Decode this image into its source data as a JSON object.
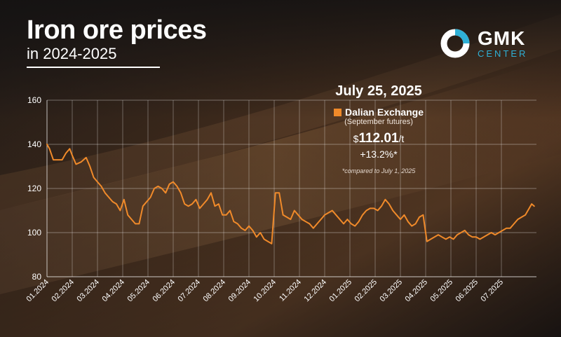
{
  "header": {
    "title": "Iron ore prices",
    "subtitle": "in 2024-2025"
  },
  "logo": {
    "name": "GMK",
    "tagline": "CENTER",
    "icon": "gmk-ring-logo"
  },
  "callout": {
    "date": "July 25, 2025",
    "exchange": "Dalian Exchange",
    "contract": "(September futures)",
    "currency": "$",
    "price": "112.01",
    "unit": "/t",
    "change": "+13.2%*",
    "footnote": "*compared to July 1, 2025"
  },
  "colors": {
    "line": "#f08a2a",
    "accent": "#2fb0d6"
  },
  "chart_data": {
    "type": "line",
    "ylim": [
      80,
      160
    ],
    "yticks": [
      80,
      100,
      120,
      140,
      160
    ],
    "xlim": [
      0,
      19.3
    ],
    "categories": [
      "01.2024",
      "02.2024",
      "03.2024",
      "04.2024",
      "05.2024",
      "06.2024",
      "07.2024",
      "08.2024",
      "09.2024",
      "10.2024",
      "11.2024",
      "12.2024",
      "01.2025",
      "02.2025",
      "03.2025",
      "04.2025",
      "05.2025",
      "06.2025",
      "07.2025"
    ],
    "grid": true,
    "series": [
      {
        "x": [
          0.0,
          0.1,
          0.25,
          0.45,
          0.6,
          0.75,
          0.9,
          1.0,
          1.15,
          1.35,
          1.55,
          1.7,
          1.85,
          2.0,
          2.15,
          2.3,
          2.45,
          2.6,
          2.75,
          2.9,
          3.05,
          3.2,
          3.35,
          3.5,
          3.65,
          3.8,
          3.95,
          4.1,
          4.25,
          4.4,
          4.55,
          4.7,
          4.85,
          5.0,
          5.15,
          5.3,
          5.45,
          5.6,
          5.75,
          5.9,
          6.05,
          6.2,
          6.35,
          6.5,
          6.65,
          6.8,
          6.95,
          7.1,
          7.25,
          7.4,
          7.55,
          7.7,
          7.85,
          8.0,
          8.15,
          8.3,
          8.45,
          8.6,
          8.75,
          8.9,
          9.05,
          9.2,
          9.35,
          9.5,
          9.65,
          9.8,
          9.95,
          10.1,
          10.25,
          10.4,
          10.55,
          10.7,
          10.85,
          11.0,
          11.15,
          11.3,
          11.45,
          11.6,
          11.75,
          11.9,
          12.05,
          12.2,
          12.35,
          12.5,
          12.65,
          12.8,
          12.95,
          13.1,
          13.25,
          13.4,
          13.55,
          13.7,
          13.85,
          14.0,
          14.15,
          14.3,
          14.45,
          14.6,
          14.75,
          14.9,
          15.05,
          15.2,
          15.35,
          15.5,
          15.65,
          15.8,
          15.95,
          16.1,
          16.25,
          16.4,
          16.55,
          16.7,
          16.85,
          17.0,
          17.15,
          17.3,
          17.45,
          17.6,
          17.75,
          17.9,
          18.05,
          18.2,
          18.35,
          18.5,
          18.65,
          18.8,
          18.95,
          19.1,
          19.2,
          19.3
        ],
        "values": [
          140,
          138,
          133,
          133,
          133,
          136,
          138,
          135,
          131,
          132,
          134,
          130,
          125,
          123,
          121,
          118,
          116,
          114,
          113,
          110,
          115,
          108,
          106,
          104,
          104,
          112,
          114,
          116,
          120,
          121,
          120,
          118,
          122,
          123,
          121,
          118,
          113,
          112,
          113,
          115,
          111,
          113,
          115,
          118,
          112,
          113,
          108,
          108,
          110,
          105,
          104,
          102,
          101,
          103,
          101,
          98,
          100,
          97,
          96,
          95,
          118,
          118,
          108,
          107,
          106,
          110,
          108,
          106,
          105,
          104,
          102,
          104,
          106,
          108,
          109,
          110,
          108,
          106,
          104,
          106,
          104,
          103,
          105,
          108,
          110,
          111,
          111,
          110,
          112,
          115,
          113,
          110,
          108,
          106,
          108,
          105,
          103,
          104,
          107,
          108,
          96,
          97,
          98,
          99,
          98,
          97,
          98,
          97,
          99,
          100,
          101,
          99,
          98,
          98,
          97,
          98,
          99,
          100,
          99,
          100,
          101,
          102,
          102,
          104,
          106,
          107,
          108,
          111,
          113,
          112
        ]
      }
    ]
  }
}
